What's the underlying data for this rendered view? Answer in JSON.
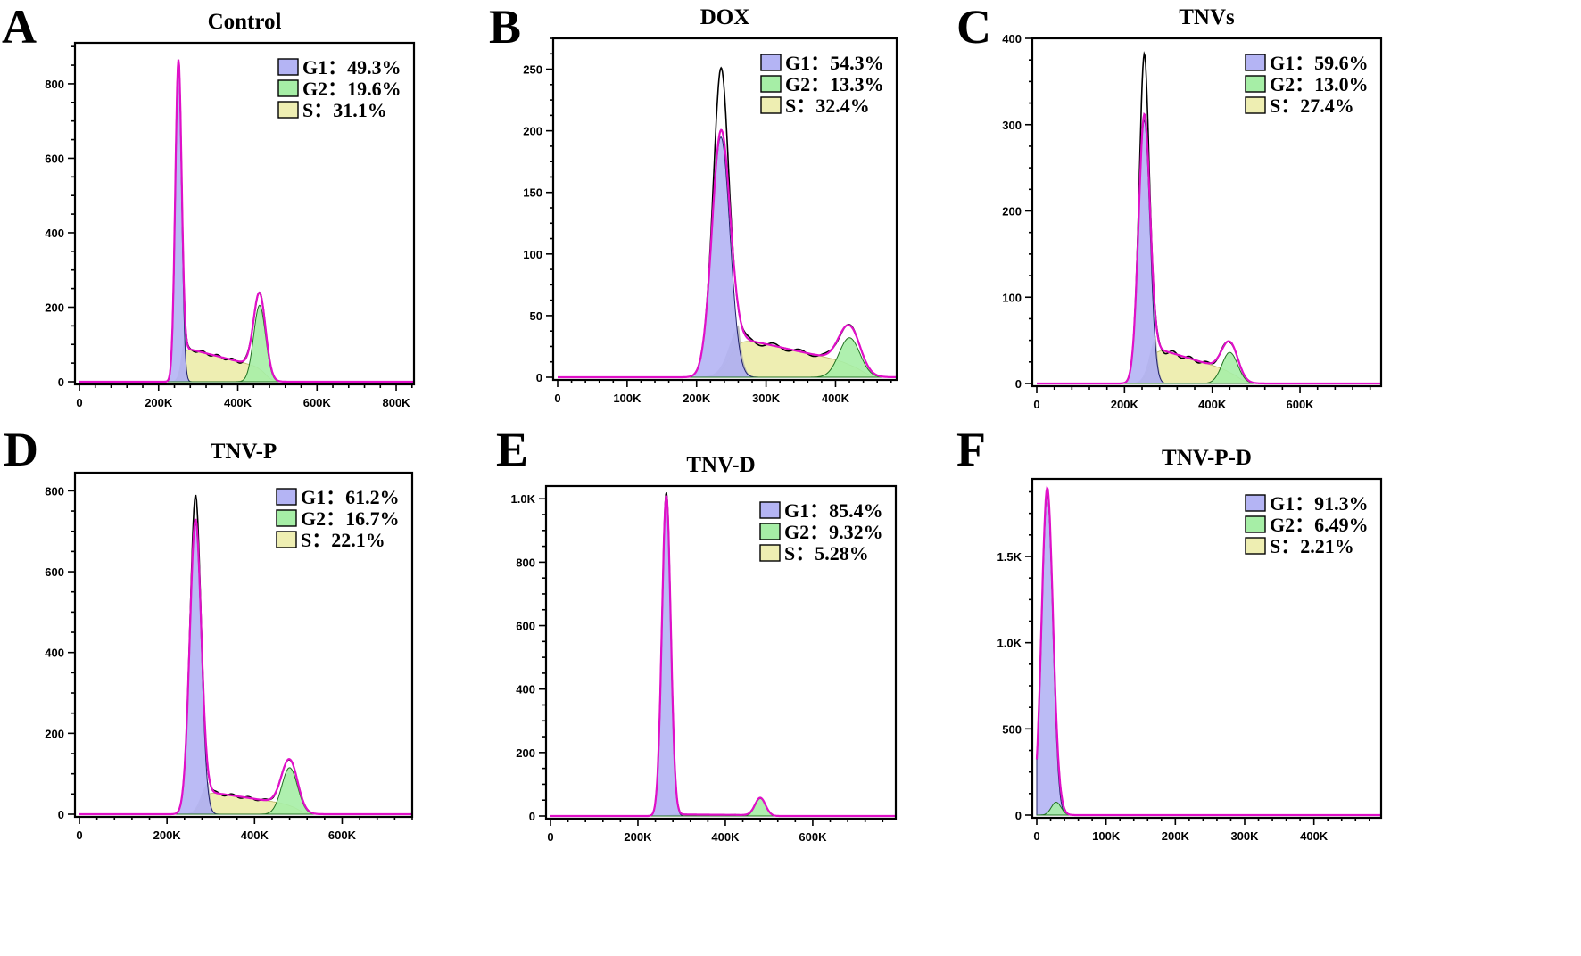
{
  "colors": {
    "G1": "#b4b4f4",
    "G2": "#a6eea6",
    "S": "#eeeeb2",
    "overlap": "#aaaaaa",
    "model": "#e010c8",
    "raw": "#000000"
  },
  "chart_data": [
    {
      "type": "area",
      "letter": "A",
      "title": "Control",
      "legend": [
        {
          "key": "G1",
          "label": "G1：49.3%"
        },
        {
          "key": "G2",
          "label": "G2：19.6%"
        },
        {
          "key": "S",
          "label": "S：31.1%"
        }
      ],
      "xlim": [
        0,
        845000
      ],
      "ylim": [
        0,
        910
      ],
      "xticks": [
        0,
        200000,
        400000,
        600000,
        800000
      ],
      "xticklabels": [
        "0",
        "200K",
        "400K",
        "600K",
        "800K"
      ],
      "yticks": [
        0,
        200,
        400,
        600,
        800
      ],
      "yticklabels": [
        "0",
        "200",
        "400",
        "600",
        "800"
      ],
      "g1": {
        "x": 250000,
        "height": 850,
        "raw_height": 850,
        "sd": 8000
      },
      "g2": {
        "x": 455000,
        "height": 205,
        "sd": 15000
      },
      "s": {
        "start": 95,
        "end": 40
      }
    },
    {
      "type": "area",
      "letter": "B",
      "title": "DOX",
      "legend": [
        {
          "key": "G1",
          "label": "G1：54.3%"
        },
        {
          "key": "G2",
          "label": "G2：13.3%"
        },
        {
          "key": "S",
          "label": "S：32.4%"
        }
      ],
      "xlim": [
        0,
        488000
      ],
      "ylim": [
        0,
        275
      ],
      "xticks": [
        0,
        100000,
        200000,
        300000,
        400000
      ],
      "xticklabels": [
        "0",
        "100K",
        "200K",
        "300K",
        "400K"
      ],
      "yticks": [
        0,
        50,
        100,
        150,
        200,
        250
      ],
      "yticklabels": [
        "0",
        "50",
        "100",
        "150",
        "200",
        "250"
      ],
      "g1": {
        "x": 235000,
        "height": 195,
        "raw_height": 245,
        "sd": 13000
      },
      "g2": {
        "x": 420000,
        "height": 32,
        "sd": 15000
      },
      "s": {
        "start": 35,
        "end": 12
      }
    },
    {
      "type": "area",
      "letter": "C",
      "title": "TNVs",
      "legend": [
        {
          "key": "G1",
          "label": "G1：59.6%"
        },
        {
          "key": "G2",
          "label": "G2：13.0%"
        },
        {
          "key": "S",
          "label": "S：27.4%"
        }
      ],
      "xlim": [
        0,
        785000
      ],
      "ylim": [
        0,
        400
      ],
      "xticks": [
        0,
        200000,
        400000,
        600000
      ],
      "xticklabels": [
        "0",
        "200K",
        "400K",
        "600K"
      ],
      "yticks": [
        0,
        100,
        200,
        300,
        400
      ],
      "yticklabels": [
        "0",
        "100",
        "200",
        "300",
        "400"
      ],
      "g1": {
        "x": 245000,
        "height": 305,
        "raw_height": 375,
        "sd": 13000
      },
      "g2": {
        "x": 440000,
        "height": 36,
        "sd": 18000
      },
      "s": {
        "start": 45,
        "end": 15
      }
    },
    {
      "type": "area",
      "letter": "D",
      "title": "TNV-P",
      "legend": [
        {
          "key": "G1",
          "label": "G1：61.2%"
        },
        {
          "key": "G2",
          "label": "G2：16.7%"
        },
        {
          "key": "S",
          "label": "S：22.1%"
        }
      ],
      "xlim": [
        0,
        760000
      ],
      "ylim": [
        0,
        845
      ],
      "xticks": [
        0,
        200000,
        400000,
        600000
      ],
      "xticklabels": [
        "0",
        "200K",
        "400K",
        "600K"
      ],
      "yticks": [
        0,
        200,
        400,
        600,
        800
      ],
      "yticklabels": [
        "0",
        "200",
        "400",
        "600",
        "800"
      ],
      "g1": {
        "x": 265000,
        "height": 720,
        "raw_height": 780,
        "sd": 13000
      },
      "g2": {
        "x": 480000,
        "height": 115,
        "sd": 18000
      },
      "s": {
        "start": 60,
        "end": 25
      }
    },
    {
      "type": "area",
      "letter": "E",
      "title": "TNV-D",
      "legend": [
        {
          "key": "G1",
          "label": "G1：85.4%"
        },
        {
          "key": "G2",
          "label": "G2：9.32%"
        },
        {
          "key": "S",
          "label": "S：5.28%"
        }
      ],
      "xlim": [
        0,
        790000
      ],
      "ylim": [
        0,
        1040
      ],
      "xticks": [
        0,
        200000,
        400000,
        600000
      ],
      "xticklabels": [
        "0",
        "200K",
        "400K",
        "600K"
      ],
      "yticks": [
        0,
        200,
        400,
        600,
        800,
        1000
      ],
      "yticklabels": [
        "0",
        "200",
        "400",
        "600",
        "800",
        "1.0K"
      ],
      "g1": {
        "x": 265000,
        "height": 1010,
        "raw_height": 1020,
        "sd": 10000
      },
      "g2": {
        "x": 480000,
        "height": 55,
        "sd": 12000
      },
      "s": {
        "start": 5,
        "end": 3
      }
    },
    {
      "type": "area",
      "letter": "F",
      "title": "TNV-P-D",
      "legend": [
        {
          "key": "G1",
          "label": "G1：91.3%"
        },
        {
          "key": "G2",
          "label": "G2：6.49%"
        },
        {
          "key": "S",
          "label": "S：2.21%"
        }
      ],
      "xlim": [
        0,
        497000
      ],
      "ylim": [
        0,
        1950
      ],
      "xticks": [
        0,
        100000,
        200000,
        300000,
        400000
      ],
      "xticklabels": [
        "0",
        "100K",
        "200K",
        "300K",
        "400K"
      ],
      "yticks": [
        0,
        500,
        1000,
        1500
      ],
      "yticklabels": [
        "0",
        "500",
        "1.0K",
        "1.5K"
      ],
      "g1": {
        "x": 15000,
        "height": 1880,
        "raw_height": 1860,
        "sd": 8000
      },
      "g2": {
        "x": 28000,
        "height": 75,
        "sd": 7000
      },
      "s": {
        "start": 30,
        "end": 20
      }
    }
  ]
}
